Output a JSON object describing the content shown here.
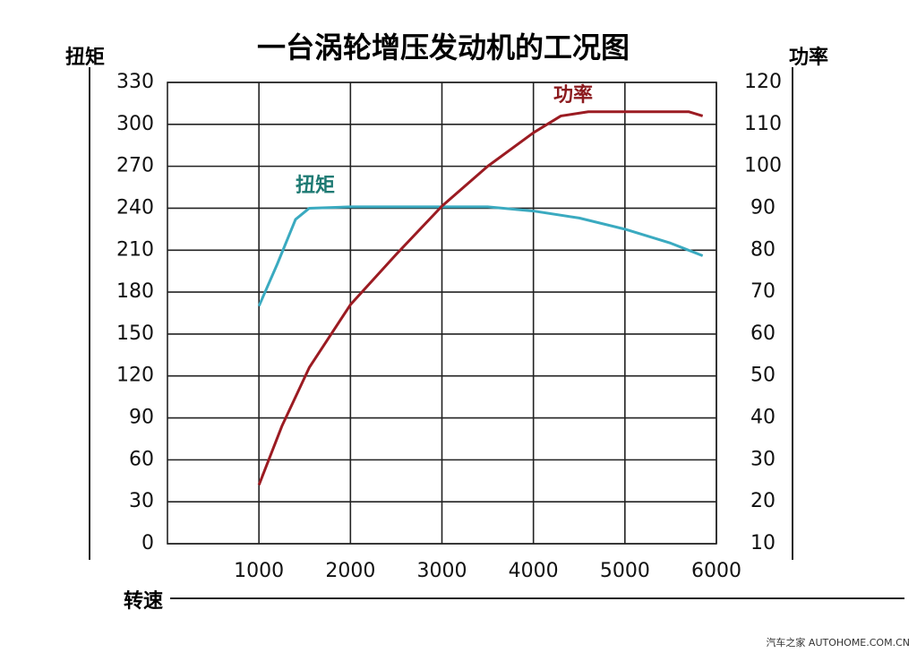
{
  "chart_data": {
    "type": "line",
    "title": "一台涡轮增压发动机的工况图",
    "ylabel": "扭矩",
    "y2label": "功率",
    "xlabel": "转速",
    "source": "汽车之家 AUTOHOME.COM.CN",
    "xlim": [
      0,
      6000
    ],
    "xticks": [
      1000,
      2000,
      3000,
      4000,
      5000,
      6000
    ],
    "ylim": [
      0,
      330
    ],
    "yticks": [
      0,
      30,
      60,
      90,
      120,
      150,
      180,
      210,
      240,
      270,
      300,
      330
    ],
    "y2lim": [
      10,
      120
    ],
    "y2ticks": [
      10,
      20,
      30,
      40,
      50,
      60,
      70,
      80,
      90,
      100,
      110,
      120
    ],
    "grid": true,
    "series": [
      {
        "name": "扭矩",
        "color": "#3aaac0",
        "label_color": "#1e7a73",
        "x": [
          1000,
          1200,
          1400,
          1550,
          2000,
          3000,
          3500,
          4000,
          4500,
          5000,
          5500,
          5850
        ],
        "values": [
          170,
          200,
          232,
          240,
          241,
          241,
          241,
          238,
          233,
          225,
          215,
          206
        ]
      },
      {
        "name": "功率",
        "color": "#9b1b22",
        "label_color": "#8b1a1e",
        "axis": "y2",
        "x": [
          1000,
          1250,
          1550,
          2000,
          2500,
          3000,
          3500,
          4000,
          4300,
          4600,
          5000,
          5700,
          5850
        ],
        "values": [
          24,
          38,
          52,
          67,
          79,
          90.5,
          100,
          108,
          112,
          113,
          113,
          113,
          112
        ]
      }
    ]
  }
}
